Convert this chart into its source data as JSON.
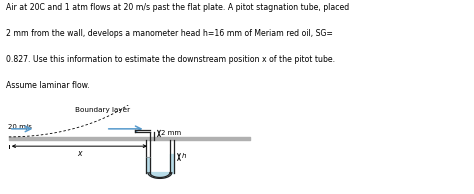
{
  "title_lines": [
    "Air at 20C and 1 atm flows at 20 m/s past the flat plate. A pitot stagnation tube, placed",
    "2 mm from the wall, develops a manometer head h=16 mm of Meriam red oil, SG=",
    "0.827. Use this information to estimate the downstream position x of the pitot tube.",
    "Assume laminar flow."
  ],
  "label_velocity": "20 m/s",
  "label_boundary": "Boundary layer",
  "label_2mm": "2 mm",
  "label_x": "x",
  "label_h": "h",
  "plate_color": "#b0b0b0",
  "fluid_color": "#b8dce8",
  "arrow_color": "#5599cc",
  "text_color": "#000000",
  "bg_color": "#ffffff"
}
